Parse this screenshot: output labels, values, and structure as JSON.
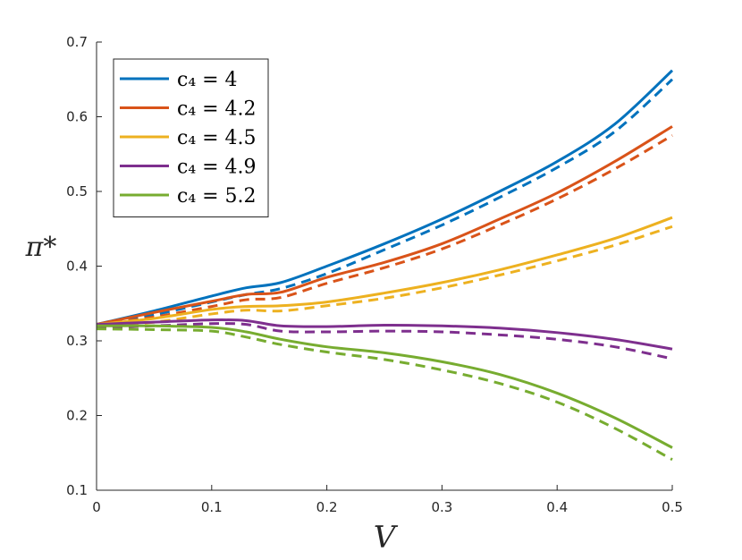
{
  "chart_data": {
    "type": "line",
    "title": "",
    "xlabel": "V",
    "ylabel": "π*",
    "xlim": [
      0,
      0.5
    ],
    "ylim": [
      0.1,
      0.7
    ],
    "xticks": [
      0,
      0.1,
      0.2,
      0.3,
      0.4,
      0.5
    ],
    "xtick_labels": [
      "0",
      "0.1",
      "0.2",
      "0.3",
      "0.4",
      "0.5"
    ],
    "yticks": [
      0.1,
      0.2,
      0.3,
      0.4,
      0.5,
      0.6,
      0.7
    ],
    "ytick_labels": [
      "0.1",
      "0.2",
      "0.3",
      "0.4",
      "0.5",
      "0.6",
      "0.7"
    ],
    "grid": false,
    "legend_position": "top-left",
    "x": [
      0,
      0.05,
      0.1,
      0.13,
      0.16,
      0.2,
      0.25,
      0.3,
      0.35,
      0.4,
      0.45,
      0.5
    ],
    "series": [
      {
        "name": "c₄ = 4",
        "color": "#0072BD",
        "values": [
          0.322,
          0.34,
          0.36,
          0.371,
          0.378,
          0.4,
          0.43,
          0.463,
          0.5,
          0.54,
          0.59,
          0.662
        ],
        "dashed_values": [
          0.322,
          0.335,
          0.352,
          0.362,
          0.37,
          0.39,
          0.422,
          0.455,
          0.492,
          0.532,
          0.58,
          0.65
        ]
      },
      {
        "name": "c₄ = 4.2",
        "color": "#D95319",
        "values": [
          0.322,
          0.338,
          0.353,
          0.362,
          0.365,
          0.385,
          0.405,
          0.43,
          0.463,
          0.498,
          0.54,
          0.587
        ],
        "dashed_values": [
          0.322,
          0.332,
          0.346,
          0.355,
          0.358,
          0.377,
          0.398,
          0.423,
          0.455,
          0.49,
          0.53,
          0.575
        ]
      },
      {
        "name": "c₄ = 4.5",
        "color": "#EDB120",
        "values": [
          0.322,
          0.33,
          0.342,
          0.346,
          0.347,
          0.352,
          0.364,
          0.378,
          0.395,
          0.415,
          0.437,
          0.465
        ],
        "dashed_values": [
          0.318,
          0.325,
          0.336,
          0.341,
          0.34,
          0.347,
          0.357,
          0.371,
          0.388,
          0.407,
          0.428,
          0.453
        ]
      },
      {
        "name": "c₄ = 4.9",
        "color": "#7E2F8E",
        "values": [
          0.322,
          0.325,
          0.328,
          0.327,
          0.32,
          0.319,
          0.321,
          0.32,
          0.317,
          0.311,
          0.302,
          0.289
        ],
        "dashed_values": [
          0.318,
          0.32,
          0.323,
          0.322,
          0.313,
          0.312,
          0.313,
          0.312,
          0.308,
          0.302,
          0.292,
          0.276
        ]
      },
      {
        "name": "c₄ = 5.2",
        "color": "#77AC30",
        "values": [
          0.32,
          0.32,
          0.318,
          0.312,
          0.302,
          0.292,
          0.284,
          0.272,
          0.255,
          0.23,
          0.197,
          0.157
        ],
        "dashed_values": [
          0.316,
          0.315,
          0.313,
          0.305,
          0.295,
          0.285,
          0.275,
          0.261,
          0.243,
          0.218,
          0.183,
          0.141
        ]
      }
    ]
  }
}
